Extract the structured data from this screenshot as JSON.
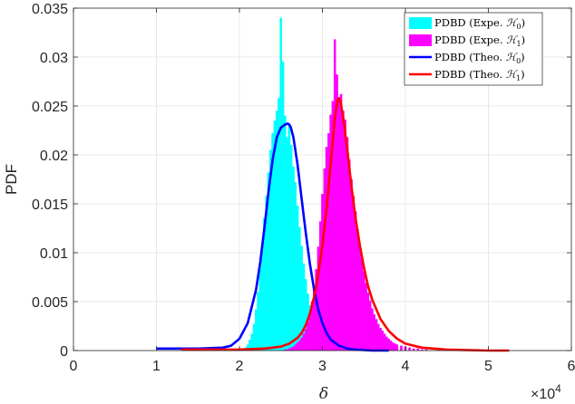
{
  "chart_data": {
    "type": "bar",
    "xlabel": "δ",
    "ylabel": "PDF",
    "x_multiplier": "×10",
    "x_multiplier_exponent": "4",
    "xlim": [
      0,
      60000
    ],
    "ylim": [
      0,
      0.035
    ],
    "xticks": [
      0,
      10000,
      20000,
      30000,
      40000,
      50000,
      60000
    ],
    "xtick_labels": [
      "0",
      "1",
      "2",
      "3",
      "4",
      "5",
      "6"
    ],
    "yticks": [
      0,
      0.005,
      0.01,
      0.015,
      0.02,
      0.025,
      0.03,
      0.035
    ],
    "ytick_labels": [
      "0",
      "0.005",
      "0.01",
      "0.015",
      "0.02",
      "0.025",
      "0.03",
      "0.035"
    ],
    "grid": true,
    "legend_position": "top-right",
    "series": [
      {
        "name": "PDBD (Expe. ℋ₀)",
        "legend_main": "PDBD (Expe. ",
        "legend_sub": "0",
        "kind": "histogram",
        "color": "#00ffff",
        "bin_width": 250,
        "x": [
          20750,
          21000,
          21250,
          21500,
          21750,
          22000,
          22250,
          22500,
          22750,
          23000,
          23250,
          23500,
          23750,
          24000,
          24250,
          24500,
          24750,
          25000,
          25250,
          25500,
          25750,
          26000,
          26250,
          26500,
          26750,
          27000,
          27250,
          27500,
          27750,
          28000,
          28250,
          28500,
          28750,
          29000,
          29250,
          29500,
          29750,
          30000,
          30250,
          30500,
          30750,
          31000
        ],
        "values": [
          0.0003,
          0.0006,
          0.0011,
          0.0017,
          0.0027,
          0.0042,
          0.006,
          0.0085,
          0.0108,
          0.0135,
          0.0158,
          0.0182,
          0.0205,
          0.0222,
          0.0235,
          0.0245,
          0.0258,
          0.034,
          0.0295,
          0.024,
          0.0218,
          0.0232,
          0.021,
          0.0188,
          0.0172,
          0.0148,
          0.0126,
          0.0107,
          0.0089,
          0.0073,
          0.0058,
          0.0046,
          0.0035,
          0.0026,
          0.0019,
          0.0014,
          0.001,
          0.0007,
          0.0005,
          0.0003,
          0.0002,
          0.0001
        ]
      },
      {
        "name": "PDBD (Expe. ℋ₁)",
        "legend_main": "PDBD (Expe. ",
        "legend_sub": "1",
        "kind": "histogram",
        "color": "#ff00ff",
        "bin_width": 250,
        "x": [
          25500,
          25750,
          26000,
          26250,
          26500,
          26750,
          27000,
          27250,
          27500,
          27750,
          28000,
          28250,
          28500,
          28750,
          29000,
          29250,
          29500,
          29750,
          30000,
          30250,
          30500,
          30750,
          31000,
          31250,
          31500,
          31750,
          32000,
          32250,
          32500,
          32750,
          33000,
          33250,
          33500,
          33750,
          34000,
          34250,
          34500,
          34750,
          35000,
          35250,
          35500,
          35750,
          36000,
          36250,
          36500,
          36750,
          37000,
          37250,
          37500,
          37750,
          38000,
          38250,
          38500,
          38750,
          39000,
          39500,
          40000,
          40500,
          41000,
          41500,
          42000,
          42500
        ],
        "values": [
          0.0001,
          0.0001,
          0.0002,
          0.0003,
          0.0004,
          0.0006,
          0.0008,
          0.001,
          0.0013,
          0.0017,
          0.0022,
          0.0029,
          0.0038,
          0.005,
          0.0064,
          0.0083,
          0.0106,
          0.0132,
          0.016,
          0.0186,
          0.0208,
          0.0222,
          0.0241,
          0.0255,
          0.0318,
          0.0282,
          0.0255,
          0.0262,
          0.0245,
          0.0236,
          0.0218,
          0.0195,
          0.0175,
          0.0158,
          0.0142,
          0.0124,
          0.0108,
          0.0094,
          0.0081,
          0.0069,
          0.0059,
          0.0051,
          0.0043,
          0.0037,
          0.0032,
          0.0027,
          0.0023,
          0.002,
          0.0017,
          0.0014,
          0.0012,
          0.001,
          0.0008,
          0.0007,
          0.0006,
          0.0005,
          0.0004,
          0.0003,
          0.0002,
          0.0002,
          0.0001,
          0.0001
        ]
      },
      {
        "name": "PDBD (Theo. ℋ₀)",
        "legend_main": "PDBD (Theo. ",
        "legend_sub": "0",
        "kind": "line",
        "color": "#0000ff",
        "x": [
          10000,
          15000,
          18000,
          19000,
          20000,
          21000,
          22000,
          22500,
          23000,
          23500,
          24000,
          24500,
          25000,
          25500,
          25800,
          26000,
          26200,
          26500,
          27000,
          27500,
          28000,
          28500,
          29000,
          29500,
          30000,
          30500,
          31000,
          32000,
          33000,
          34000,
          36000,
          38000
        ],
        "values": [
          0.0002,
          0.0002,
          0.0003,
          0.0005,
          0.0012,
          0.0028,
          0.0062,
          0.009,
          0.0125,
          0.0162,
          0.0195,
          0.0218,
          0.0228,
          0.0231,
          0.0232,
          0.0231,
          0.0228,
          0.0218,
          0.019,
          0.0155,
          0.012,
          0.0088,
          0.0062,
          0.0042,
          0.0028,
          0.0018,
          0.0011,
          0.0005,
          0.0002,
          0.0001,
          0.0,
          0.0
        ]
      },
      {
        "name": "PDBD (Theo. ℋ₁)",
        "legend_main": "PDBD (Theo. ",
        "legend_sub": "1",
        "kind": "line",
        "color": "#ff0000",
        "x": [
          13000,
          20000,
          23000,
          25000,
          26000,
          27000,
          27500,
          28000,
          28500,
          29000,
          29500,
          30000,
          30500,
          31000,
          31500,
          31800,
          32000,
          32200,
          32500,
          33000,
          33500,
          34000,
          34500,
          35000,
          35500,
          36000,
          37000,
          38000,
          39000,
          40000,
          42000,
          45000,
          50000,
          52500
        ],
        "values": [
          0.0001,
          0.0001,
          0.0002,
          0.0004,
          0.0007,
          0.0013,
          0.0018,
          0.0026,
          0.0038,
          0.0055,
          0.0078,
          0.0108,
          0.0145,
          0.0192,
          0.0238,
          0.0255,
          0.0258,
          0.0254,
          0.0238,
          0.0205,
          0.0168,
          0.0135,
          0.0108,
          0.0085,
          0.0066,
          0.0052,
          0.0032,
          0.002,
          0.0012,
          0.0007,
          0.0003,
          0.0001,
          0.0,
          0.0
        ]
      }
    ]
  }
}
